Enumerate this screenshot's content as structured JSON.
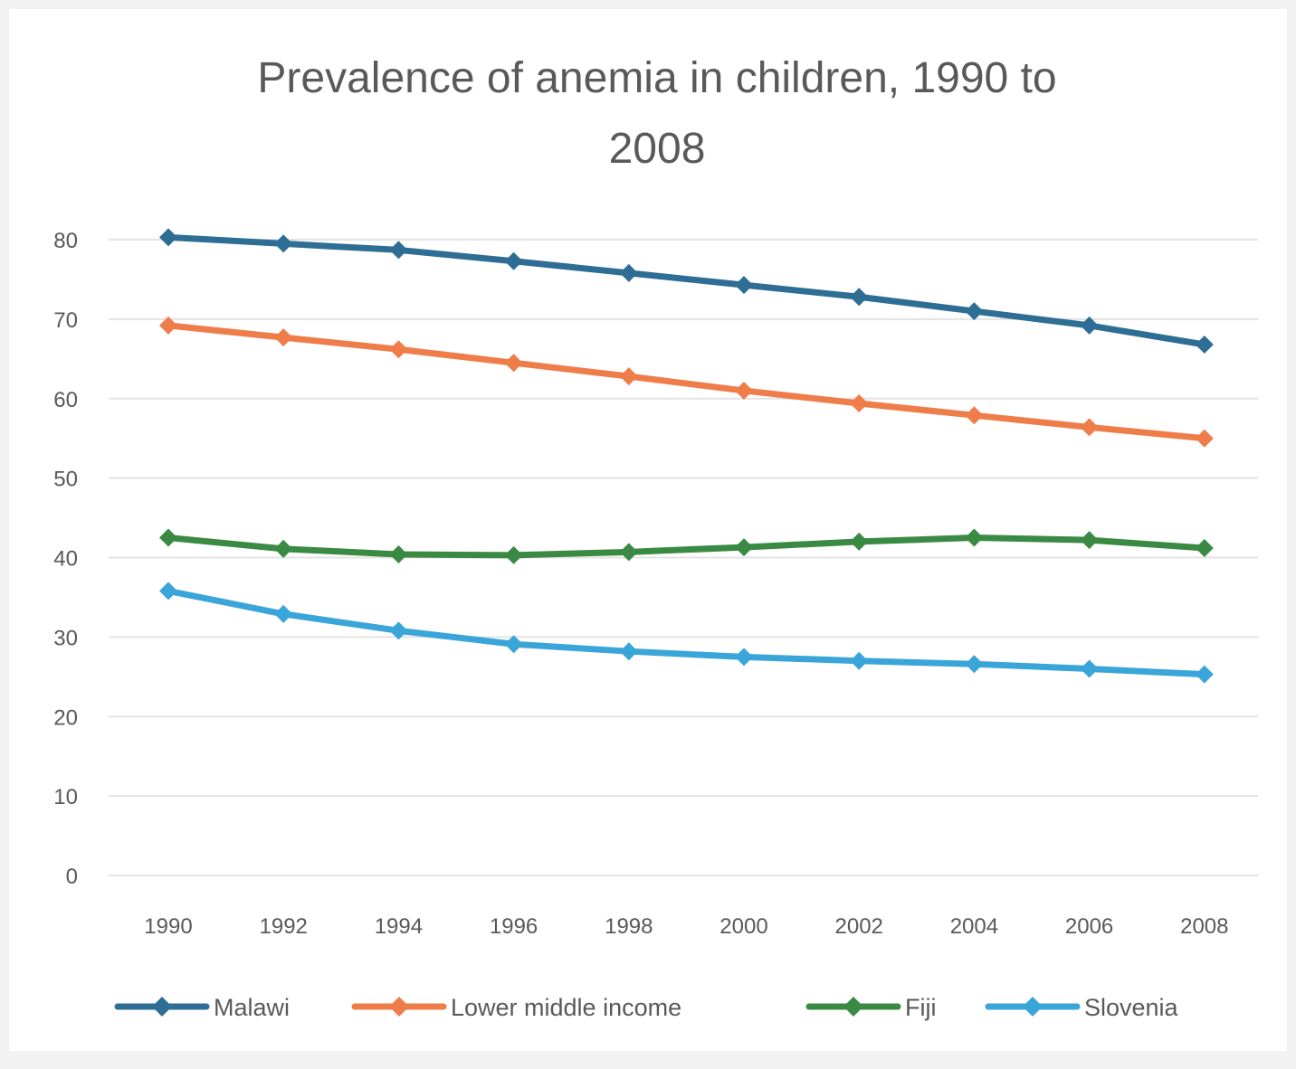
{
  "chart_data": {
    "type": "line",
    "title_lines": [
      "Prevalence of anemia in children, 1990 to",
      "2008"
    ],
    "x": [
      "1990",
      "1992",
      "1994",
      "1996",
      "1998",
      "2000",
      "2002",
      "2004",
      "2006",
      "2008"
    ],
    "xlabel": "",
    "ylabel": "",
    "ylim": [
      0,
      80
    ],
    "yticks": [
      0,
      10,
      20,
      30,
      40,
      50,
      60,
      70,
      80
    ],
    "grid": true,
    "legend_position": "bottom",
    "series": [
      {
        "name": "Malawi",
        "color": "#2e6e94",
        "values": [
          80.3,
          79.5,
          78.7,
          77.3,
          75.8,
          74.3,
          72.8,
          71.0,
          69.2,
          66.8
        ]
      },
      {
        "name": "Lower middle income",
        "color": "#ef7d4a",
        "values": [
          69.2,
          67.7,
          66.2,
          64.5,
          62.8,
          61.0,
          59.4,
          57.9,
          56.4,
          55.0
        ]
      },
      {
        "name": "Fiji",
        "color": "#3a8a44",
        "values": [
          42.5,
          41.1,
          40.4,
          40.3,
          40.7,
          41.3,
          42.0,
          42.5,
          42.2,
          41.2
        ]
      },
      {
        "name": "Slovenia",
        "color": "#3aa5d9",
        "values": [
          35.8,
          32.9,
          30.8,
          29.1,
          28.2,
          27.5,
          27.0,
          26.6,
          26.0,
          25.3
        ]
      }
    ]
  }
}
